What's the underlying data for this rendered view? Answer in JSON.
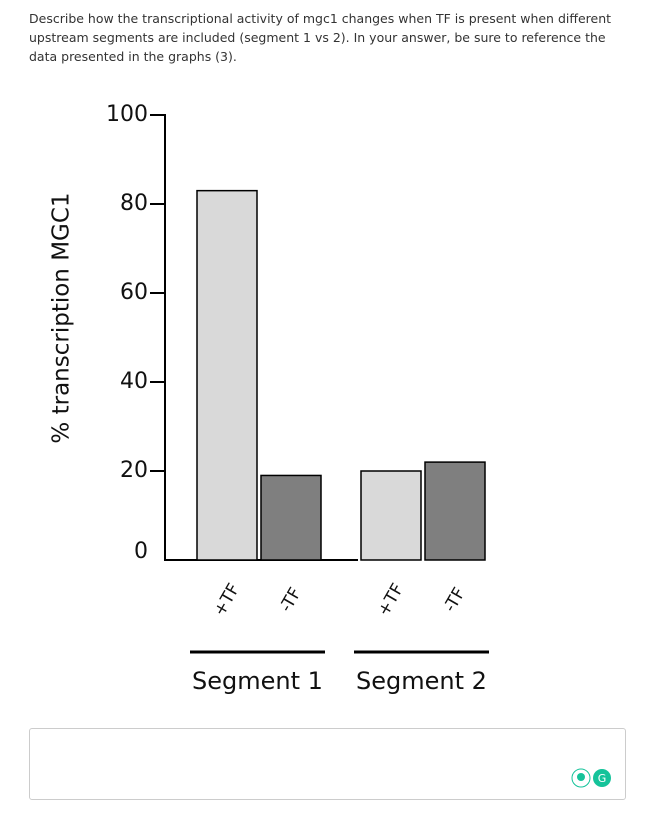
{
  "question": "Describe how the transcriptional activity of mgc1 changes when TF is present when different upstream segments are included (segment 1 vs 2). In your answer, be sure to reference the data presented in the graphs (3).",
  "chart_data": {
    "type": "bar",
    "y_label": "% transcription MGC1",
    "categories": [
      "Segment 1",
      "Segment 2"
    ],
    "series": [
      {
        "name": "+TF",
        "color": "#d9d9d9",
        "values": [
          83,
          20
        ]
      },
      {
        "name": "-TF",
        "color": "#7f7f7f",
        "values": [
          19,
          22
        ]
      }
    ],
    "ylim": [
      0,
      100
    ],
    "yticks": [
      0,
      20,
      40,
      60,
      80,
      100
    ]
  }
}
